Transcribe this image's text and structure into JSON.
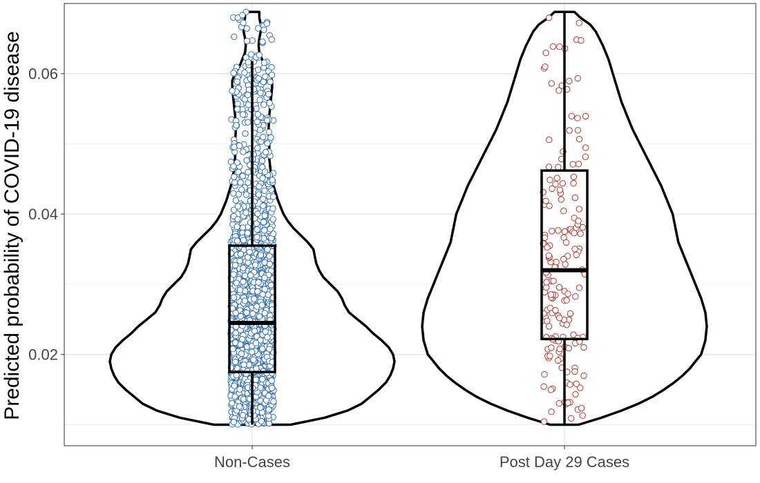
{
  "chart_data": {
    "type": "violin",
    "title": "",
    "xlabel": "",
    "ylabel": "Predicted probability of COVID-19 disease",
    "ylim": [
      0.007,
      0.07
    ],
    "yticks": [
      0.02,
      0.04,
      0.06
    ],
    "ytick_labels": [
      "0.02",
      "0.04",
      "0.06"
    ],
    "grid": true,
    "categories": [
      "Non-Cases",
      "Post Day 29 Cases"
    ],
    "groups": [
      {
        "category": "Non-Cases",
        "point_color": "#2F6DB0",
        "points_fill": "#ffffff",
        "n_points_approx": 2000,
        "box": {
          "whisker_low": 0.01,
          "q1": 0.0175,
          "median": 0.0245,
          "q3": 0.0355,
          "whisker_high": 0.0618
        },
        "density": [
          [
            0.01,
            0.27
          ],
          [
            0.011,
            0.51
          ],
          [
            0.012,
            0.67
          ],
          [
            0.013,
            0.77
          ],
          [
            0.014,
            0.83
          ],
          [
            0.015,
            0.89
          ],
          [
            0.016,
            0.94
          ],
          [
            0.017,
            0.97
          ],
          [
            0.018,
            0.99
          ],
          [
            0.019,
            1.0
          ],
          [
            0.02,
            0.99
          ],
          [
            0.021,
            0.96
          ],
          [
            0.022,
            0.91
          ],
          [
            0.023,
            0.85
          ],
          [
            0.024,
            0.8
          ],
          [
            0.025,
            0.74
          ],
          [
            0.026,
            0.68
          ],
          [
            0.027,
            0.65
          ],
          [
            0.028,
            0.63
          ],
          [
            0.029,
            0.6
          ],
          [
            0.03,
            0.55
          ],
          [
            0.031,
            0.5
          ],
          [
            0.032,
            0.47
          ],
          [
            0.033,
            0.45
          ],
          [
            0.034,
            0.44
          ],
          [
            0.035,
            0.43
          ],
          [
            0.036,
            0.39
          ],
          [
            0.037,
            0.34
          ],
          [
            0.038,
            0.29
          ],
          [
            0.039,
            0.25
          ],
          [
            0.04,
            0.22
          ],
          [
            0.042,
            0.18
          ],
          [
            0.044,
            0.15
          ],
          [
            0.046,
            0.13
          ],
          [
            0.048,
            0.12
          ],
          [
            0.05,
            0.12
          ],
          [
            0.052,
            0.115
          ],
          [
            0.054,
            0.12
          ],
          [
            0.056,
            0.13
          ],
          [
            0.058,
            0.14
          ],
          [
            0.059,
            0.14
          ],
          [
            0.06,
            0.12
          ],
          [
            0.061,
            0.09
          ],
          [
            0.062,
            0.07
          ],
          [
            0.063,
            0.05
          ],
          [
            0.064,
            0.045
          ],
          [
            0.065,
            0.05
          ],
          [
            0.066,
            0.06
          ],
          [
            0.067,
            0.06
          ],
          [
            0.068,
            0.05
          ],
          [
            0.0688,
            0.05
          ]
        ]
      },
      {
        "category": "Post Day 29 Cases",
        "point_color": "#B5332E",
        "points_fill": "#ffffff",
        "n_points_approx": 170,
        "box": {
          "whisker_low": 0.01,
          "q1": 0.0222,
          "median": 0.032,
          "q3": 0.0462,
          "whisker_high": 0.0688
        },
        "density": [
          [
            0.01,
            0.1
          ],
          [
            0.011,
            0.26
          ],
          [
            0.012,
            0.4
          ],
          [
            0.013,
            0.52
          ],
          [
            0.014,
            0.62
          ],
          [
            0.015,
            0.7
          ],
          [
            0.016,
            0.77
          ],
          [
            0.017,
            0.83
          ],
          [
            0.018,
            0.88
          ],
          [
            0.019,
            0.92
          ],
          [
            0.02,
            0.96
          ],
          [
            0.022,
            0.99
          ],
          [
            0.024,
            1.0
          ],
          [
            0.026,
            0.99
          ],
          [
            0.028,
            0.96
          ],
          [
            0.03,
            0.92
          ],
          [
            0.032,
            0.88
          ],
          [
            0.034,
            0.84
          ],
          [
            0.036,
            0.8
          ],
          [
            0.038,
            0.78
          ],
          [
            0.04,
            0.76
          ],
          [
            0.042,
            0.72
          ],
          [
            0.044,
            0.68
          ],
          [
            0.046,
            0.63
          ],
          [
            0.048,
            0.58
          ],
          [
            0.05,
            0.53
          ],
          [
            0.052,
            0.48
          ],
          [
            0.054,
            0.44
          ],
          [
            0.056,
            0.4
          ],
          [
            0.058,
            0.37
          ],
          [
            0.06,
            0.34
          ],
          [
            0.062,
            0.31
          ],
          [
            0.064,
            0.27
          ],
          [
            0.066,
            0.22
          ],
          [
            0.067,
            0.18
          ],
          [
            0.068,
            0.11
          ],
          [
            0.0688,
            0.07
          ]
        ]
      }
    ]
  }
}
